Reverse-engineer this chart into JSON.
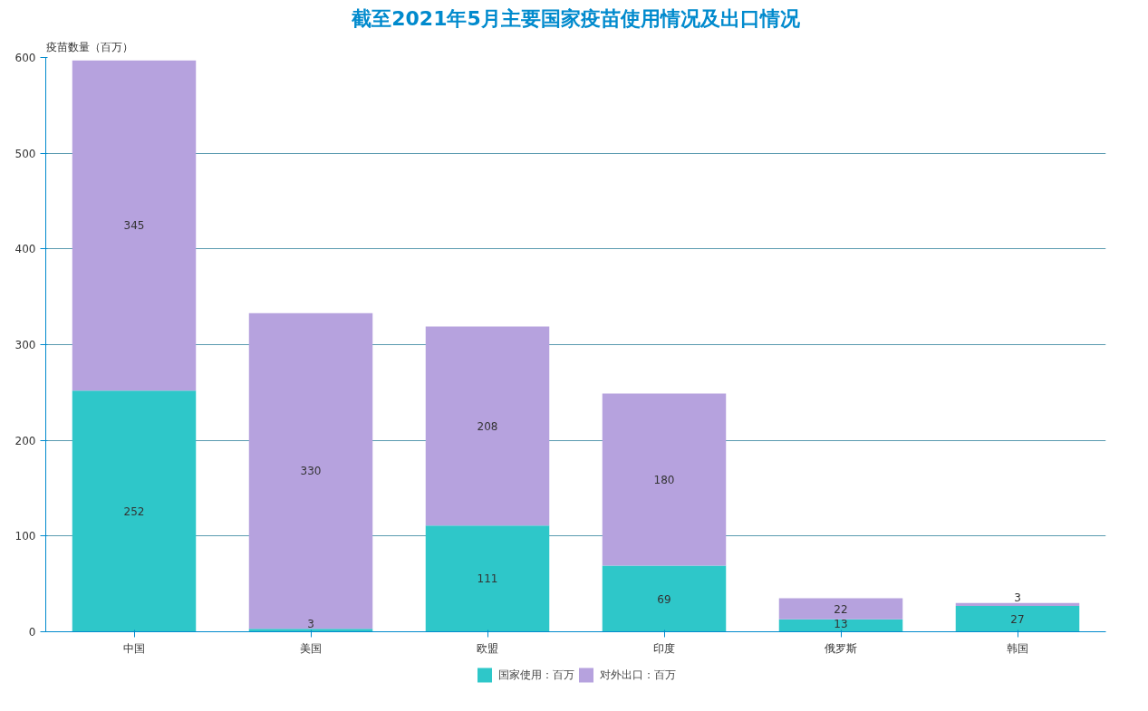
{
  "chart_data": {
    "type": "bar",
    "title": "截至2021年5月主要国家疫苗使用情况及出口情况",
    "ylabel": "疫苗数量（百万）",
    "categories": [
      "中国",
      "美国",
      "欧盟",
      "印度",
      "俄罗斯",
      "韩国"
    ],
    "stacked": true,
    "series": [
      {
        "name": "国家使用：百万",
        "color": "#2ec7c9",
        "values": [
          252,
          3,
          111,
          69,
          13,
          27
        ]
      },
      {
        "name": "对外出口：百万",
        "color": "#b6a2de",
        "values": [
          345,
          330,
          208,
          180,
          22,
          3
        ]
      }
    ],
    "ylim": [
      0,
      600
    ],
    "yticks": [
      0,
      100,
      200,
      300,
      400,
      500,
      600
    ],
    "grid": "y",
    "legend": "bottom",
    "data_labels": true
  }
}
